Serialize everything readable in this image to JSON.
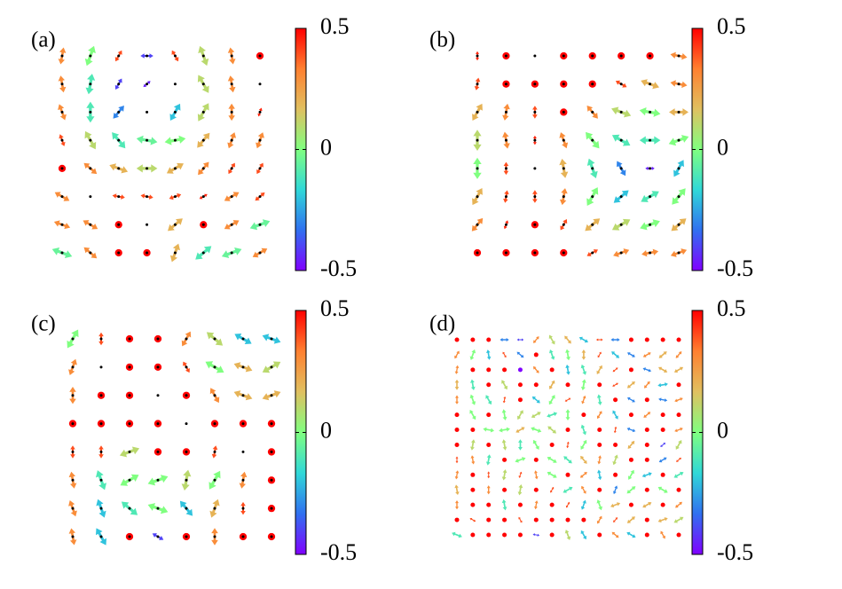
{
  "chart_data": [
    {
      "type": "quiver",
      "label": "(a)",
      "clim": [
        -0.5,
        0.5
      ],
      "cticks": [
        0.5,
        0,
        -0.5
      ],
      "center_dots": true,
      "colormap": [
        "#8000ff",
        "#3070f0",
        "#30d8d8",
        "#80ff80",
        "#e0c060",
        "#ff8030",
        "#ff0000"
      ],
      "sz": [
        [
          0.3,
          0.0,
          0.4,
          -0.4,
          0.4,
          0.1,
          0.3,
          0.5
        ],
        [
          0.3,
          -0.1,
          -0.4,
          -0.45,
          null,
          0.1,
          0.3,
          null
        ],
        [
          0.3,
          -0.1,
          -0.3,
          null,
          -0.2,
          0.1,
          0.3,
          0.45
        ],
        [
          0.4,
          0.1,
          -0.1,
          -0.05,
          0.0,
          0.2,
          0.3,
          0.3
        ],
        [
          0.5,
          0.3,
          0.2,
          0.1,
          0.2,
          0.3,
          0.4,
          0.4
        ],
        [
          0.3,
          null,
          0.4,
          0.4,
          0.4,
          0.45,
          0.3,
          0.4
        ],
        [
          0.3,
          0.3,
          0.5,
          null,
          0.2,
          0.5,
          0.3,
          -0.05
        ],
        [
          -0.05,
          0.3,
          0.5,
          0.5,
          0.2,
          -0.1,
          -0.05,
          0.3
        ]
      ],
      "angle": [
        [
          80,
          70,
          60,
          0,
          120,
          110,
          100,
          90
        ],
        [
          100,
          80,
          60,
          40,
          0,
          120,
          100,
          0
        ],
        [
          110,
          90,
          50,
          0,
          60,
          60,
          90,
          70
        ],
        [
          110,
          120,
          130,
          170,
          10,
          50,
          70,
          70
        ],
        [
          90,
          140,
          160,
          180,
          30,
          50,
          60,
          60
        ],
        [
          150,
          0,
          170,
          170,
          20,
          30,
          30,
          40
        ],
        [
          160,
          150,
          140,
          0,
          40,
          30,
          30,
          20
        ],
        [
          160,
          140,
          120,
          100,
          70,
          40,
          20,
          30
        ]
      ]
    },
    {
      "type": "quiver",
      "label": "(b)",
      "clim": [
        -0.5,
        0.5
      ],
      "cticks": [
        0.5,
        0,
        -0.5
      ],
      "center_dots": true,
      "colormap": [
        "#8000ff",
        "#3070f0",
        "#30d8d8",
        "#80ff80",
        "#e0c060",
        "#ff8030",
        "#ff0000"
      ],
      "sz": [
        [
          0.45,
          0.5,
          null,
          0.5,
          0.5,
          0.5,
          0.5,
          0.3
        ],
        [
          0.4,
          0.5,
          0.5,
          0.5,
          0.5,
          0.4,
          0.2,
          0.3
        ],
        [
          0.2,
          0.3,
          0.4,
          0.5,
          0.3,
          0.1,
          0.0,
          0.2
        ],
        [
          0.1,
          0.3,
          0.45,
          0.3,
          0.0,
          -0.1,
          -0.1,
          0.0
        ],
        [
          0.0,
          0.4,
          null,
          0.2,
          -0.1,
          -0.3,
          -0.45,
          -0.2
        ],
        [
          0.2,
          0.4,
          0.4,
          0.3,
          0.0,
          -0.2,
          -0.1,
          0.0
        ],
        [
          0.3,
          0.45,
          0.5,
          0.4,
          0.2,
          0.1,
          0.0,
          0.2
        ],
        [
          0.5,
          0.5,
          0.5,
          0.5,
          0.4,
          0.3,
          0.3,
          0.3
        ]
      ],
      "angle": [
        [
          90,
          0,
          0,
          0,
          0,
          0,
          0,
          170
        ],
        [
          80,
          90,
          90,
          90,
          80,
          150,
          160,
          170
        ],
        [
          60,
          80,
          90,
          100,
          130,
          160,
          170,
          0
        ],
        [
          90,
          100,
          90,
          110,
          130,
          150,
          0,
          20
        ],
        [
          90,
          90,
          0,
          100,
          110,
          120,
          0,
          60
        ],
        [
          60,
          80,
          90,
          80,
          60,
          40,
          30,
          50
        ],
        [
          50,
          70,
          0,
          60,
          40,
          30,
          20,
          40
        ],
        [
          0,
          0,
          0,
          0,
          30,
          20,
          10,
          20
        ]
      ]
    },
    {
      "type": "quiver",
      "label": "(c)",
      "clim": [
        -0.5,
        0.5
      ],
      "cticks": [
        0.5,
        0,
        -0.5
      ],
      "center_dots": true,
      "colormap": [
        "#8000ff",
        "#3070f0",
        "#30d8d8",
        "#80ff80",
        "#e0c060",
        "#ff8030",
        "#ff0000"
      ],
      "sz": [
        [
          0.0,
          0.4,
          0.5,
          0.5,
          0.3,
          0.1,
          -0.2,
          -0.2
        ],
        [
          0.3,
          null,
          0.5,
          0.5,
          0.4,
          0.0,
          0.2,
          0.1
        ],
        [
          0.3,
          0.5,
          0.5,
          null,
          0.5,
          0.3,
          0.2,
          0.2
        ],
        [
          0.5,
          0.5,
          0.5,
          0.5,
          null,
          0.5,
          0.5,
          0.5
        ],
        [
          0.4,
          0.4,
          0.1,
          0.5,
          0.5,
          0.4,
          null,
          0.5
        ],
        [
          0.3,
          -0.1,
          0.0,
          0.0,
          0.1,
          0.0,
          0.3,
          0.5
        ],
        [
          0.3,
          -0.2,
          -0.1,
          0.0,
          -0.2,
          0.2,
          0.4,
          0.5
        ],
        [
          0.3,
          -0.2,
          0.5,
          -0.4,
          0.5,
          0.3,
          0.5,
          0.5
        ]
      ],
      "angle": [
        [
          60,
          90,
          0,
          0,
          60,
          140,
          150,
          160
        ],
        [
          70,
          0,
          0,
          0,
          120,
          150,
          160,
          30
        ],
        [
          90,
          0,
          0,
          0,
          0,
          120,
          160,
          20
        ],
        [
          0,
          0,
          0,
          0,
          0,
          0,
          0,
          0
        ],
        [
          90,
          90,
          20,
          0,
          0,
          80,
          0,
          0
        ],
        [
          100,
          110,
          30,
          20,
          80,
          60,
          80,
          0
        ],
        [
          110,
          110,
          140,
          160,
          130,
          70,
          90,
          0
        ],
        [
          100,
          120,
          0,
          150,
          0,
          90,
          0,
          0
        ]
      ]
    },
    {
      "type": "quiver",
      "label": "(d)",
      "clim": [
        -0.5,
        0.5
      ],
      "cticks": [
        0.5,
        0,
        -0.5
      ],
      "center_dots": false,
      "colormap": [
        "#8000ff",
        "#3070f0",
        "#30d8d8",
        "#80ff80",
        "#e0c060",
        "#ff8030",
        "#ff0000"
      ],
      "sz": [
        [
          0.5,
          0.5,
          0.5,
          -0.3,
          -0.4,
          0.3,
          0.1,
          0.2,
          -0.2,
          0.4,
          -0.3,
          0.5,
          0.5,
          0.5,
          0.5
        ],
        [
          0.3,
          0.0,
          -0.2,
          0.4,
          -0.3,
          0.5,
          -0.1,
          0.0,
          0.2,
          0.4,
          -0.2,
          -0.3,
          0.3,
          0.2,
          0.3
        ],
        [
          0.3,
          0.5,
          0.5,
          0.5,
          -0.5,
          0.3,
          0.5,
          -0.2,
          -0.1,
          0.2,
          0.4,
          0.5,
          -0.3,
          0.2,
          0.2
        ],
        [
          0.2,
          -0.1,
          0.5,
          0.1,
          0.5,
          0.5,
          0.2,
          0.5,
          0.0,
          0.5,
          0.4,
          0.2,
          0.3,
          -0.2,
          0.5
        ],
        [
          0.3,
          0.0,
          -0.1,
          0.4,
          0.5,
          -0.2,
          0.0,
          0.4,
          0.3,
          -0.1,
          0.5,
          -0.3,
          0.5,
          -0.3,
          0.3
        ],
        [
          0.5,
          0.0,
          0.5,
          0.0,
          0.1,
          0.1,
          -0.1,
          0.0,
          0.5,
          0.3,
          -0.2,
          0.5,
          0.3,
          0.5,
          0.5
        ],
        [
          0.5,
          0.5,
          0.0,
          0.0,
          0.2,
          0.0,
          0.1,
          0.5,
          -0.1,
          0.5,
          0.4,
          -0.3,
          0.5,
          0.5,
          0.3
        ],
        [
          0.5,
          0.1,
          0.5,
          0.1,
          -0.1,
          0.0,
          0.5,
          0.4,
          0.0,
          0.5,
          0.5,
          0.2,
          0.5,
          -0.4,
          0.1
        ],
        [
          0.4,
          0.3,
          -0.1,
          0.5,
          0.0,
          0.5,
          0.0,
          -0.1,
          0.2,
          0.3,
          0.1,
          0.5,
          0.5,
          -0.3,
          0.4
        ],
        [
          0.3,
          0.5,
          0.4,
          0.1,
          0.4,
          0.3,
          0.0,
          0.5,
          0.3,
          -0.2,
          0.5,
          0.0,
          -0.2,
          0.5,
          -0.1
        ],
        [
          0.2,
          0.5,
          0.3,
          0.5,
          0.1,
          0.5,
          0.4,
          -0.1,
          0.3,
          0.5,
          -0.3,
          0.0,
          0.5,
          0.0,
          0.5
        ],
        [
          0.3,
          0.5,
          0.5,
          -0.1,
          0.5,
          0.3,
          0.5,
          0.4,
          -0.2,
          0.0,
          0.2,
          0.5,
          0.2,
          0.5,
          0.3
        ],
        [
          0.5,
          0.4,
          0.5,
          0.5,
          0.4,
          0.5,
          0.5,
          0.5,
          0.5,
          0.3,
          0.4,
          0.2,
          0.5,
          0.2,
          0.1
        ],
        [
          -0.1,
          0.5,
          0.5,
          0.5,
          0.5,
          -0.4,
          0.5,
          0.1,
          -0.2,
          0.5,
          0.3,
          -0.2,
          0.5,
          0.3,
          0.5
        ]
      ],
      "angle": [
        [
          0,
          0,
          0,
          0,
          0,
          50,
          120,
          130,
          150,
          0,
          0,
          0,
          0,
          0,
          0
        ],
        [
          60,
          70,
          100,
          120,
          140,
          0,
          110,
          100,
          90,
          60,
          140,
          150,
          30,
          40,
          50
        ],
        [
          80,
          0,
          0,
          0,
          0,
          130,
          0,
          100,
          110,
          60,
          40,
          0,
          160,
          150,
          30
        ],
        [
          90,
          100,
          0,
          120,
          0,
          0,
          60,
          0,
          80,
          0,
          30,
          40,
          50,
          10,
          0
        ],
        [
          90,
          110,
          120,
          80,
          0,
          140,
          60,
          30,
          70,
          100,
          0,
          150,
          0,
          170,
          20
        ],
        [
          0,
          120,
          0,
          100,
          60,
          30,
          20,
          90,
          0,
          60,
          120,
          0,
          40,
          0,
          0
        ],
        [
          0,
          0,
          170,
          10,
          30,
          160,
          140,
          0,
          110,
          0,
          80,
          160,
          0,
          0,
          20
        ],
        [
          0,
          80,
          0,
          100,
          90,
          120,
          0,
          80,
          60,
          0,
          0,
          50,
          0,
          40,
          60
        ],
        [
          90,
          100,
          80,
          0,
          20,
          0,
          150,
          140,
          130,
          80,
          70,
          0,
          0,
          30,
          40
        ],
        [
          80,
          0,
          90,
          80,
          70,
          100,
          150,
          0,
          40,
          100,
          0,
          60,
          20,
          0,
          30
        ],
        [
          100,
          0,
          90,
          0,
          80,
          0,
          60,
          30,
          120,
          0,
          70,
          40,
          0,
          150,
          0
        ],
        [
          90,
          0,
          0,
          100,
          0,
          80,
          0,
          60,
          70,
          110,
          20,
          0,
          30,
          0,
          40
        ],
        [
          0,
          150,
          0,
          0,
          120,
          0,
          0,
          0,
          0,
          60,
          50,
          40,
          0,
          20,
          30
        ],
        [
          160,
          0,
          0,
          0,
          0,
          170,
          0,
          110,
          120,
          0,
          140,
          150,
          0,
          120,
          0
        ]
      ]
    }
  ]
}
